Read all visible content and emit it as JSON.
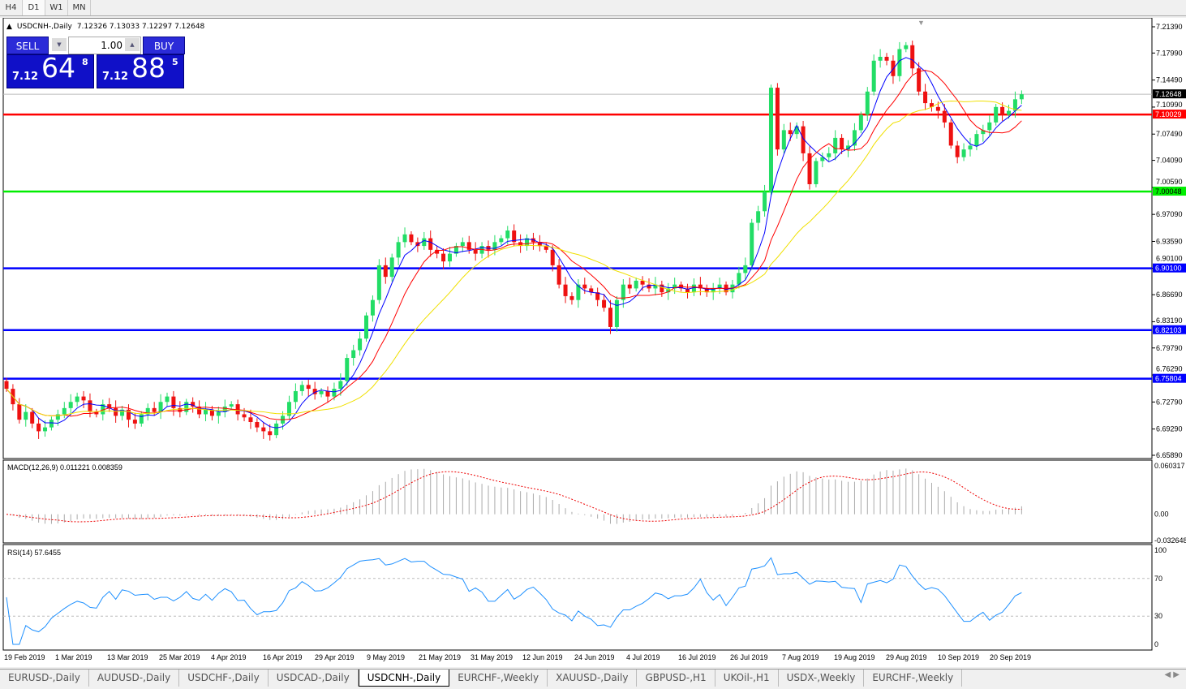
{
  "timeframes": [
    "H4",
    "D1",
    "W1",
    "MN"
  ],
  "active_timeframe": "D1",
  "header": {
    "symbol": "USDCNH-,Daily",
    "ohlc": "7.12326 7.13033 7.12297 7.12648"
  },
  "trade_panel": {
    "sell_label": "SELL",
    "buy_label": "BUY",
    "lot": "1.00",
    "sell": {
      "small": "7.12",
      "big": "64",
      "tiny": "8"
    },
    "buy": {
      "small": "7.12",
      "big": "88",
      "tiny": "5"
    }
  },
  "price_axis": {
    "ticks": [
      "7.21390",
      "7.17990",
      "7.14490",
      "7.10990",
      "7.07490",
      "7.04090",
      "7.00590",
      "6.97090",
      "6.93590",
      "6.90100",
      "6.86690",
      "6.83190",
      "6.79790",
      "6.76290",
      "6.72790",
      "6.69290",
      "6.65890"
    ],
    "range": [
      6.6589,
      7.2139
    ],
    "current": "7.12648"
  },
  "levels": [
    {
      "price": "7.10029",
      "color": "#ff0000"
    },
    {
      "price": "7.00048",
      "color": "#00ee00"
    },
    {
      "price": "6.90100",
      "color": "#0000ff"
    },
    {
      "price": "6.82103",
      "color": "#0000ff"
    },
    {
      "price": "6.75804",
      "color": "#0000ff"
    }
  ],
  "macd": {
    "label": "MACD(12,26,9) 0.011221 0.008359",
    "ticks": [
      "0.060317",
      "0.00",
      "-0.032648"
    ],
    "range": [
      -0.032648,
      0.060317
    ]
  },
  "rsi": {
    "label": "RSI(14) 57.6455",
    "ticks": [
      "100",
      "70",
      "30",
      "0"
    ]
  },
  "dates": [
    "19 Feb 2019",
    "1 Mar 2019",
    "13 Mar 2019",
    "25 Mar 2019",
    "4 Apr 2019",
    "16 Apr 2019",
    "29 Apr 2019",
    "9 May 2019",
    "21 May 2019",
    "31 May 2019",
    "12 Jun 2019",
    "24 Jun 2019",
    "4 Jul 2019",
    "16 Jul 2019",
    "26 Jul 2019",
    "7 Aug 2019",
    "19 Aug 2019",
    "29 Aug 2019",
    "10 Sep 2019",
    "20 Sep 2019"
  ],
  "colors": {
    "up": "#22dd66",
    "down": "#ee1111",
    "ma_fast": "#0000ff",
    "ma_mid": "#ff0000",
    "ma_slow": "#ffff00"
  },
  "chart_data": {
    "type": "candlestick",
    "closes": [
      6.745,
      6.725,
      6.705,
      6.715,
      6.7,
      6.69,
      6.695,
      6.705,
      6.712,
      6.72,
      6.728,
      6.735,
      6.73,
      6.715,
      6.712,
      6.725,
      6.72,
      6.71,
      6.718,
      6.705,
      6.7,
      6.712,
      6.72,
      6.715,
      6.728,
      6.735,
      6.72,
      6.715,
      6.728,
      6.722,
      6.712,
      6.718,
      6.71,
      6.715,
      6.722,
      6.725,
      6.712,
      6.708,
      6.702,
      6.695,
      6.69,
      6.685,
      6.7,
      6.71,
      6.728,
      6.742,
      6.75,
      6.745,
      6.738,
      6.742,
      6.735,
      6.745,
      6.755,
      6.785,
      6.795,
      6.81,
      6.84,
      6.86,
      6.905,
      6.89,
      6.915,
      6.935,
      6.945,
      6.935,
      6.93,
      6.94,
      6.925,
      6.92,
      6.91,
      6.92,
      6.93,
      6.935,
      6.925,
      6.92,
      6.93,
      6.925,
      6.935,
      6.94,
      6.95,
      6.935,
      6.93,
      6.94,
      6.935,
      6.93,
      6.925,
      6.905,
      6.88,
      6.865,
      6.86,
      6.88,
      6.875,
      6.87,
      6.86,
      6.85,
      6.825,
      6.86,
      6.88,
      6.875,
      6.885,
      6.88,
      6.875,
      6.88,
      6.87,
      6.875,
      6.88,
      6.875,
      6.87,
      6.88,
      6.875,
      6.87,
      6.875,
      6.88,
      6.87,
      6.88,
      6.895,
      6.905,
      6.96,
      6.975,
      7.0,
      7.135,
      7.055,
      7.08,
      7.075,
      7.085,
      7.05,
      7.01,
      7.04,
      7.045,
      7.05,
      7.07,
      7.055,
      7.06,
      7.08,
      7.1,
      7.13,
      7.17,
      7.175,
      7.17,
      7.15,
      7.185,
      7.19,
      7.16,
      7.13,
      7.115,
      7.11,
      7.105,
      7.09,
      7.06,
      7.045,
      7.055,
      7.06,
      7.075,
      7.08,
      7.09,
      7.11,
      7.1,
      7.105,
      7.12,
      7.12648
    ]
  },
  "tabs": [
    "EURUSD-,Daily",
    "AUDUSD-,Daily",
    "USDCHF-,Daily",
    "USDCAD-,Daily",
    "USDCNH-,Daily",
    "EURCHF-,Weekly",
    "XAUUSD-,Daily",
    "GBPUSD-,H1",
    "UKOil-,H1",
    "USDX-,Weekly",
    "EURCHF-,Weekly"
  ],
  "active_tab": 4
}
